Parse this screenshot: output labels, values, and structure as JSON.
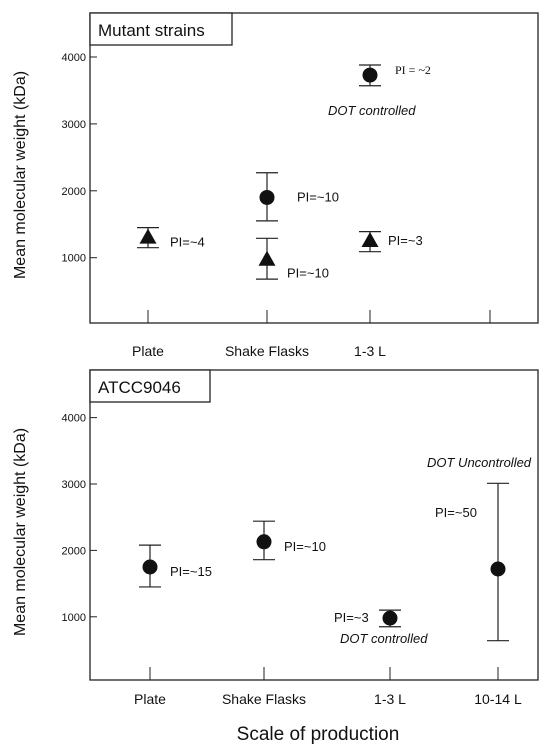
{
  "figure": {
    "shared_xlabel": "Scale of production"
  },
  "chart_data": [
    {
      "type": "scatter",
      "title": "Mutant strains",
      "ylabel": "Mean molecular weight (kDa)",
      "xlabel": "",
      "categories": [
        "Plate",
        "Shake Flasks",
        "1-3  L"
      ],
      "ylim": [
        0,
        4500
      ],
      "yticks": [
        1000,
        2000,
        3000,
        4000
      ],
      "grid": false,
      "points": [
        {
          "category": "Plate",
          "marker": "triangle",
          "y": 1300,
          "err_low": 1150,
          "err_high": 1450,
          "label": "PI=~4"
        },
        {
          "category": "Shake Flasks",
          "marker": "circle",
          "y": 1900,
          "err_low": 1550,
          "err_high": 2270,
          "label": "PI=~10"
        },
        {
          "category": "Shake Flasks",
          "marker": "triangle",
          "y": 970,
          "err_low": 680,
          "err_high": 1290,
          "label": "PI=~10"
        },
        {
          "category": "1-3  L",
          "marker": "triangle",
          "y": 1250,
          "err_low": 1090,
          "err_high": 1390,
          "label": "PI=~3"
        },
        {
          "category": "1-3  L",
          "marker": "circle",
          "y": 3730,
          "err_low": 3570,
          "err_high": 3880,
          "label": "PI = ~2"
        }
      ],
      "annotations": [
        {
          "text": "DOT controlled"
        }
      ]
    },
    {
      "type": "scatter",
      "title": "ATCC9046",
      "ylabel": "Mean molecular weight (kDa)",
      "xlabel": "",
      "categories": [
        "Plate",
        "Shake Flasks",
        "1-3  L",
        "10-14  L"
      ],
      "ylim": [
        0,
        4500
      ],
      "yticks": [
        1000,
        2000,
        3000,
        4000
      ],
      "grid": false,
      "points": [
        {
          "category": "Plate",
          "marker": "circle",
          "y": 1750,
          "err_low": 1450,
          "err_high": 2080,
          "label": "PI=~15"
        },
        {
          "category": "Shake Flasks",
          "marker": "circle",
          "y": 2130,
          "err_low": 1860,
          "err_high": 2440,
          "label": "PI=~10"
        },
        {
          "category": "1-3  L",
          "marker": "circle",
          "y": 980,
          "err_low": 850,
          "err_high": 1100,
          "label": "PI=~3"
        },
        {
          "category": "10-14  L",
          "marker": "circle",
          "y": 1720,
          "err_low": 640,
          "err_high": 3010,
          "label": "PI=~50"
        }
      ],
      "annotations": [
        {
          "text": "DOT controlled"
        },
        {
          "text": "DOT Uncontrolled"
        }
      ]
    }
  ]
}
